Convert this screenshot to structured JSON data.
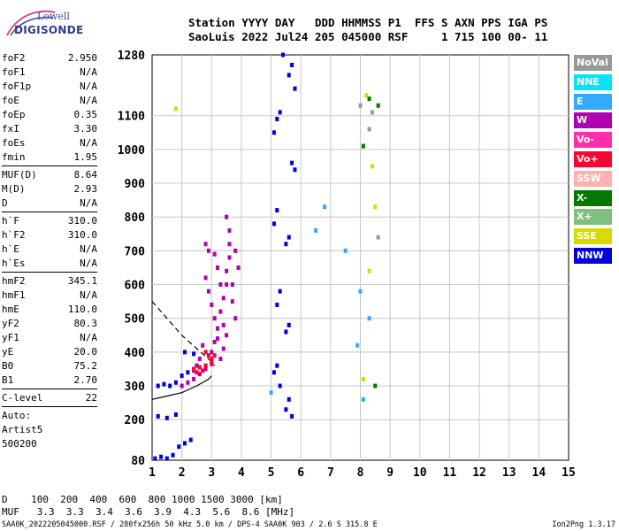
{
  "logo": {
    "line1": "Lowell",
    "line2": "DIGISONDE"
  },
  "header": {
    "line1": "Station YYYY DAY   DDD HHMMSS P1  FFS S AXN PPS IGA PS",
    "line2": "SaoLuis 2022 Jul24 205 045000 RSF     1 715 100 00- 11"
  },
  "params_group1": [
    {
      "k": "foF2",
      "v": "2.950"
    },
    {
      "k": "foF1",
      "v": "N/A"
    },
    {
      "k": "foF1p",
      "v": "N/A"
    },
    {
      "k": "foE",
      "v": "N/A"
    },
    {
      "k": "foEp",
      "v": "0.35"
    },
    {
      "k": "fxI",
      "v": "3.30"
    },
    {
      "k": "foEs",
      "v": "N/A"
    },
    {
      "k": "fmin",
      "v": "1.95"
    }
  ],
  "params_group2": [
    {
      "k": "MUF(D)",
      "v": "8.64"
    },
    {
      "k": "M(D)",
      "v": "2.93"
    },
    {
      "k": "D",
      "v": "N/A"
    }
  ],
  "params_group3": [
    {
      "k": "h`F",
      "v": "310.0"
    },
    {
      "k": "h`F2",
      "v": "310.0"
    },
    {
      "k": "h`E",
      "v": "N/A"
    },
    {
      "k": "h`Es",
      "v": "N/A"
    }
  ],
  "params_group4": [
    {
      "k": "hmF2",
      "v": "345.1"
    },
    {
      "k": "hmF1",
      "v": "N/A"
    },
    {
      "k": "hmE",
      "v": "110.0"
    },
    {
      "k": "yF2",
      "v": "80.3"
    },
    {
      "k": "yF1",
      "v": "N/A"
    },
    {
      "k": "yE",
      "v": "20.0"
    },
    {
      "k": "B0",
      "v": "75.2"
    },
    {
      "k": "B1",
      "v": "2.70"
    }
  ],
  "clevel": {
    "k": "C-level",
    "v": "22"
  },
  "auto": [
    "Auto:",
    "Artist5",
    "500200"
  ],
  "legend": [
    {
      "label": "NoVal",
      "color": "#999999"
    },
    {
      "label": "NNE",
      "color": "#00e5ff"
    },
    {
      "label": "E",
      "color": "#33aaff"
    },
    {
      "label": "W",
      "color": "#b000b0"
    },
    {
      "label": "Vo-",
      "color": "#ff2fa8"
    },
    {
      "label": "Vo+",
      "color": "#ff0033"
    },
    {
      "label": "SSW",
      "color": "#ffb0b0"
    },
    {
      "label": "X-",
      "color": "#007a00"
    },
    {
      "label": "X+",
      "color": "#7fbf7f"
    },
    {
      "label": "SSE",
      "color": "#d9d900"
    },
    {
      "label": "NNW",
      "color": "#0000dd"
    }
  ],
  "muf_table": {
    "d_row": "D    100  200  400  600  800 1000 1500 3000 [km]",
    "muf_row": "MUF   3.3  3.3  3.4  3.6  3.9  4.3  5.6  8.6 [MHz]"
  },
  "footer": {
    "left": "SAA0K_2022205045000.RSF / 280fx256h 50 kHz 5.0 km / DPS-4 SAA0K 903 / 2.6 S 315.8 E",
    "right": "Ion2Png 1.3.17"
  },
  "chart_data": {
    "type": "scatter",
    "xlim": [
      1,
      15
    ],
    "ylim": [
      80,
      1280
    ],
    "x_ticks": [
      1,
      2,
      3,
      4,
      5,
      6,
      7,
      8,
      9,
      10,
      11,
      12,
      13,
      14,
      15
    ],
    "y_ticks": [
      80,
      200,
      300,
      400,
      500,
      600,
      700,
      800,
      900,
      1000,
      1100,
      1280
    ],
    "grid": true,
    "legend_position": "right",
    "series": [
      {
        "name": "W",
        "color": "#b000b0",
        "points": [
          [
            2.0,
            300
          ],
          [
            2.2,
            310
          ],
          [
            2.4,
            320
          ],
          [
            2.6,
            335
          ],
          [
            2.8,
            350
          ],
          [
            3.0,
            365
          ],
          [
            3.0,
            400
          ],
          [
            3.1,
            430
          ],
          [
            3.2,
            470
          ],
          [
            3.3,
            520
          ],
          [
            3.4,
            560
          ],
          [
            3.5,
            600
          ],
          [
            3.5,
            640
          ],
          [
            3.6,
            680
          ],
          [
            3.6,
            720
          ],
          [
            3.6,
            760
          ],
          [
            3.5,
            800
          ],
          [
            3.4,
            480
          ],
          [
            3.3,
            380
          ],
          [
            3.2,
            440
          ],
          [
            3.1,
            500
          ],
          [
            3.0,
            540
          ],
          [
            2.9,
            580
          ],
          [
            2.8,
            620
          ],
          [
            2.7,
            420
          ],
          [
            2.6,
            380
          ],
          [
            2.5,
            360
          ],
          [
            2.4,
            345
          ],
          [
            3.8,
            700
          ],
          [
            3.9,
            650
          ],
          [
            3.7,
            600
          ],
          [
            3.7,
            550
          ],
          [
            3.8,
            500
          ],
          [
            3.5,
            450
          ],
          [
            3.4,
            410
          ],
          [
            3.3,
            600
          ],
          [
            3.2,
            650
          ],
          [
            3.1,
            690
          ],
          [
            2.9,
            700
          ],
          [
            2.8,
            720
          ]
        ]
      },
      {
        "name": "Vo+",
        "color": "#ff0033",
        "points": [
          [
            2.4,
            350
          ],
          [
            2.6,
            355
          ],
          [
            2.8,
            360
          ],
          [
            3.0,
            370
          ],
          [
            2.9,
            390
          ],
          [
            3.0,
            380
          ],
          [
            2.7,
            345
          ],
          [
            2.5,
            340
          ],
          [
            3.1,
            390
          ],
          [
            2.8,
            400
          ]
        ]
      },
      {
        "name": "NNW",
        "color": "#0000dd",
        "points": [
          [
            1.2,
            300
          ],
          [
            1.4,
            305
          ],
          [
            1.6,
            300
          ],
          [
            1.8,
            310
          ],
          [
            1.1,
            85
          ],
          [
            1.3,
            90
          ],
          [
            1.5,
            85
          ],
          [
            1.7,
            95
          ],
          [
            1.9,
            120
          ],
          [
            2.1,
            130
          ],
          [
            2.3,
            140
          ],
          [
            1.2,
            210
          ],
          [
            1.5,
            205
          ],
          [
            1.8,
            215
          ],
          [
            2.0,
            330
          ],
          [
            2.2,
            340
          ],
          [
            2.1,
            400
          ],
          [
            2.4,
            395
          ],
          [
            5.1,
            340
          ],
          [
            5.2,
            360
          ],
          [
            5.3,
            300
          ],
          [
            5.2,
            540
          ],
          [
            5.3,
            580
          ],
          [
            5.1,
            780
          ],
          [
            5.2,
            820
          ],
          [
            5.1,
            1050
          ],
          [
            5.2,
            1090
          ],
          [
            5.3,
            1110
          ],
          [
            5.5,
            230
          ],
          [
            5.6,
            260
          ],
          [
            5.7,
            210
          ],
          [
            5.5,
            460
          ],
          [
            5.6,
            480
          ],
          [
            5.5,
            720
          ],
          [
            5.6,
            740
          ],
          [
            5.7,
            960
          ],
          [
            5.8,
            940
          ],
          [
            5.6,
            1220
          ],
          [
            5.7,
            1250
          ],
          [
            5.8,
            1180
          ],
          [
            5.4,
            1280
          ]
        ]
      },
      {
        "name": "E",
        "color": "#33aaff",
        "points": [
          [
            6.8,
            830
          ],
          [
            8.0,
            580
          ],
          [
            8.3,
            500
          ],
          [
            7.9,
            420
          ],
          [
            6.5,
            760
          ],
          [
            8.1,
            260
          ],
          [
            5.0,
            280
          ],
          [
            7.5,
            700
          ]
        ]
      },
      {
        "name": "SSE",
        "color": "#d9d900",
        "points": [
          [
            8.5,
            830
          ],
          [
            8.3,
            640
          ],
          [
            8.2,
            1160
          ],
          [
            1.8,
            1120
          ],
          [
            8.4,
            950
          ],
          [
            8.1,
            320
          ]
        ]
      },
      {
        "name": "X-",
        "color": "#007a00",
        "points": [
          [
            8.6,
            1130
          ],
          [
            8.3,
            1150
          ],
          [
            8.1,
            1010
          ],
          [
            8.5,
            300
          ]
        ]
      },
      {
        "name": "NoVal",
        "color": "#999999",
        "points": [
          [
            8.3,
            1060
          ],
          [
            8.4,
            1110
          ],
          [
            8.0,
            1130
          ],
          [
            8.6,
            740
          ]
        ]
      }
    ],
    "curves": [
      {
        "name": "profile",
        "style": "solid",
        "points": [
          [
            1,
            260
          ],
          [
            1.5,
            270
          ],
          [
            2.0,
            280
          ],
          [
            2.5,
            300
          ],
          [
            2.9,
            320
          ],
          [
            3.0,
            330
          ]
        ]
      },
      {
        "name": "muf-dashed",
        "style": "dashed",
        "points": [
          [
            1,
            550
          ],
          [
            1.5,
            500
          ],
          [
            2.0,
            450
          ],
          [
            2.5,
            410
          ],
          [
            2.9,
            380
          ],
          [
            3.1,
            360
          ]
        ]
      }
    ]
  }
}
